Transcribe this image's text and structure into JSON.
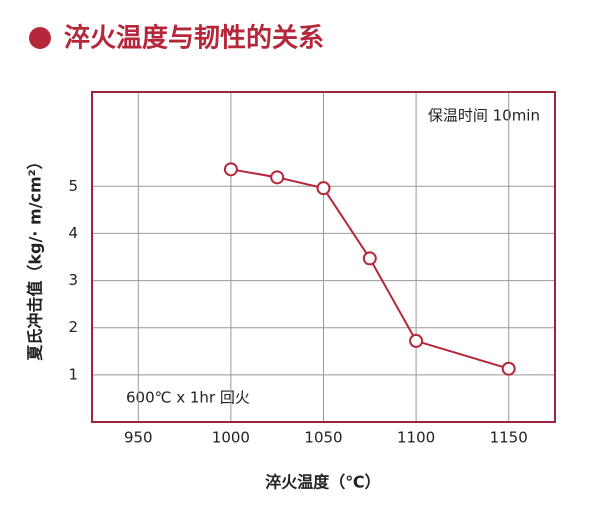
{
  "chart_data": {
    "type": "line",
    "title": "淬火温度与韧性的关系",
    "x_label": "淬火温度（℃）",
    "y_label": "夏氏冲击值（kg/· m/cm²）",
    "annotations": [
      "保温时间 10min",
      "600℃ x 1hr 回火"
    ],
    "x": [
      1000,
      1025,
      1050,
      1075,
      1100,
      1150
    ],
    "series": [
      {
        "name": "冲击值",
        "color": "#b5273a",
        "values": [
          5.36,
          5.19,
          4.96,
          3.47,
          1.72,
          1.13
        ]
      }
    ],
    "xlim": [
      925,
      1175
    ],
    "xticks": [
      950,
      1000,
      1050,
      1100,
      1150
    ],
    "ylim": [
      0,
      7
    ],
    "yticks": [
      1,
      2,
      3,
      4,
      5
    ],
    "grid": true
  }
}
